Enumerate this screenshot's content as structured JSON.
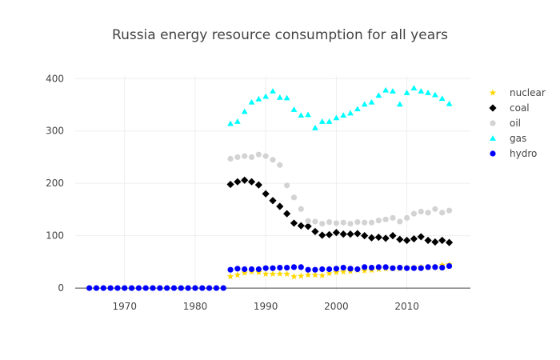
{
  "chart_data": {
    "type": "scatter",
    "title": "Russia energy resource consumption for all years",
    "xlabel": "",
    "ylabel": "",
    "xlim": [
      1963,
      2019
    ],
    "ylim": [
      -6,
      405
    ],
    "x_ticks": [
      1970,
      1980,
      1990,
      2000,
      2010
    ],
    "y_ticks": [
      0,
      100,
      200,
      300,
      400
    ],
    "grid": true,
    "legend_position": "right",
    "series": [
      {
        "name": "nuclear",
        "color": "#FFD700",
        "marker": "star",
        "x": [
          1985,
          1986,
          1987,
          1988,
          1989,
          1990,
          1991,
          1992,
          1993,
          1994,
          1995,
          1996,
          1997,
          1998,
          1999,
          2000,
          2001,
          2002,
          2003,
          2004,
          2005,
          2006,
          2007,
          2008,
          2009,
          2010,
          2011,
          2012,
          2013,
          2014,
          2015,
          2016
        ],
        "y": [
          22,
          25,
          29,
          31,
          30,
          27,
          27,
          27,
          27,
          22,
          23,
          25,
          25,
          24,
          28,
          30,
          31,
          32,
          34,
          33,
          34,
          36,
          37,
          37,
          37,
          39,
          39,
          40,
          39,
          41,
          44,
          45
        ]
      },
      {
        "name": "coal",
        "color": "#000000",
        "marker": "diamond",
        "x": [
          1985,
          1986,
          1987,
          1988,
          1989,
          1990,
          1991,
          1992,
          1993,
          1994,
          1995,
          1996,
          1997,
          1998,
          1999,
          2000,
          2001,
          2002,
          2003,
          2004,
          2005,
          2006,
          2007,
          2008,
          2009,
          2010,
          2011,
          2012,
          2013,
          2014,
          2015,
          2016
        ],
        "y": [
          198,
          203,
          206,
          203,
          197,
          180,
          167,
          156,
          142,
          124,
          119,
          118,
          108,
          101,
          102,
          106,
          103,
          103,
          104,
          100,
          96,
          97,
          95,
          100,
          93,
          91,
          94,
          98,
          91,
          88,
          91,
          87
        ]
      },
      {
        "name": "oil",
        "color": "#D3D3D3",
        "marker": "circle",
        "x": [
          1985,
          1986,
          1987,
          1988,
          1989,
          1990,
          1991,
          1992,
          1993,
          1994,
          1995,
          1996,
          1997,
          1998,
          1999,
          2000,
          2001,
          2002,
          2003,
          2004,
          2005,
          2006,
          2007,
          2008,
          2009,
          2010,
          2011,
          2012,
          2013,
          2014,
          2015,
          2016
        ],
        "y": [
          247,
          250,
          252,
          250,
          255,
          252,
          245,
          235,
          196,
          173,
          151,
          128,
          127,
          123,
          126,
          124,
          125,
          123,
          126,
          125,
          125,
          129,
          131,
          134,
          127,
          134,
          142,
          146,
          144,
          151,
          144,
          148
        ]
      },
      {
        "name": "gas",
        "color": "#00FFFF",
        "marker": "triangle-up",
        "x": [
          1985,
          1986,
          1987,
          1988,
          1989,
          1990,
          1991,
          1992,
          1993,
          1994,
          1995,
          1996,
          1997,
          1998,
          1999,
          2000,
          2001,
          2002,
          2003,
          2004,
          2005,
          2006,
          2007,
          2008,
          2009,
          2010,
          2011,
          2012,
          2013,
          2014,
          2015,
          2016
        ],
        "y": [
          314,
          318,
          337,
          355,
          361,
          366,
          376,
          364,
          363,
          341,
          330,
          331,
          306,
          318,
          318,
          325,
          330,
          334,
          342,
          351,
          355,
          368,
          378,
          376,
          351,
          373,
          382,
          376,
          373,
          369,
          362,
          352
        ]
      },
      {
        "name": "hydro",
        "color": "#0000FF",
        "marker": "circle",
        "x": [
          1965,
          1966,
          1967,
          1968,
          1969,
          1970,
          1971,
          1972,
          1973,
          1974,
          1975,
          1976,
          1977,
          1978,
          1979,
          1980,
          1981,
          1982,
          1983,
          1984,
          1985,
          1986,
          1987,
          1988,
          1989,
          1990,
          1991,
          1992,
          1993,
          1994,
          1995,
          1996,
          1997,
          1998,
          1999,
          2000,
          2001,
          2002,
          2003,
          2004,
          2005,
          2006,
          2007,
          2008,
          2009,
          2010,
          2011,
          2012,
          2013,
          2014,
          2015,
          2016
        ],
        "y": [
          0,
          0,
          0,
          0,
          0,
          0,
          0,
          0,
          0,
          0,
          0,
          0,
          0,
          0,
          0,
          0,
          0,
          0,
          0,
          0,
          35,
          37,
          36,
          36,
          36,
          38,
          38,
          39,
          39,
          40,
          40,
          35,
          35,
          36,
          36,
          37,
          39,
          37,
          36,
          40,
          39,
          40,
          40,
          38,
          39,
          38,
          38,
          38,
          40,
          40,
          39,
          42
        ]
      }
    ]
  }
}
